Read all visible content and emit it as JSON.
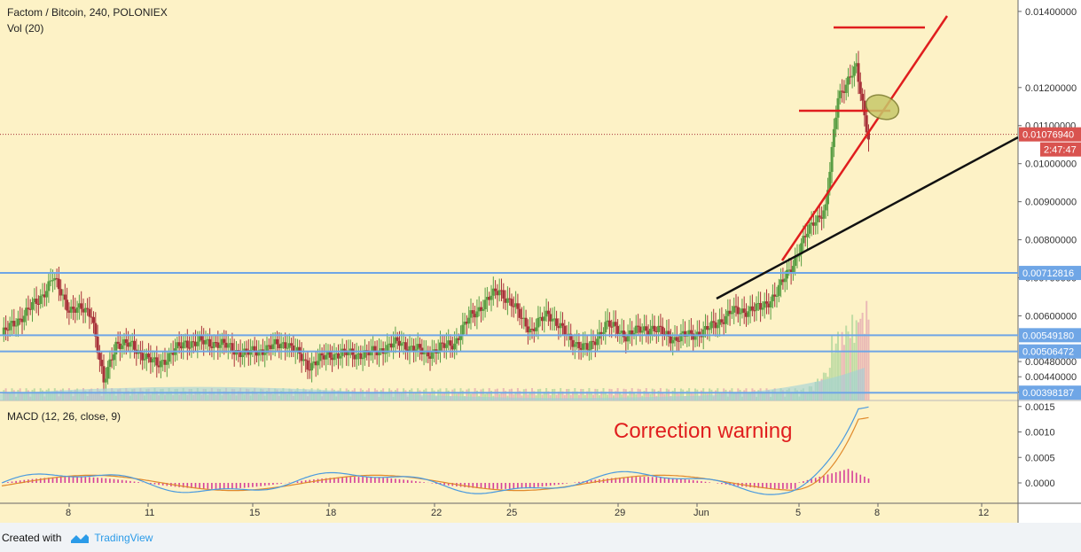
{
  "header": {
    "title": "Factom / Bitcoin, 240, POLONIEX",
    "volume_label": "Vol (20)"
  },
  "macd": {
    "label": "MACD (12, 26, close, 9)",
    "annotation": "Correction warning",
    "ticks": [
      "0.0015",
      "0.0010",
      "0.0005",
      "0.0000"
    ]
  },
  "footer": {
    "created_with": "Created with",
    "brand": "TradingView"
  },
  "price_axis": {
    "ticks": [
      "0.01400000",
      "0.01200000",
      "0.01100000",
      "0.01000000",
      "0.00900000",
      "0.00800000",
      "0.00700000",
      "0.00600000",
      "0.00480000",
      "0.00440000",
      "0.00400000"
    ]
  },
  "price_badge": {
    "value": "0.01076940",
    "countdown": "2:47:47",
    "color": "#d9534f"
  },
  "levels": [
    {
      "label": "0.00712816",
      "value": 0.00712816
    },
    {
      "label": "0.00549180",
      "value": 0.0054918
    },
    {
      "label": "0.00506472",
      "value": 0.00506472
    },
    {
      "label": "0.00398187",
      "value": 0.00398187
    }
  ],
  "time_axis": [
    "8",
    "11",
    "15",
    "18",
    "22",
    "25",
    "29",
    "Jun",
    "5",
    "8",
    "12"
  ],
  "colors": {
    "background": "#fdf2c6",
    "up": "#5a9e44",
    "down": "#a8323a",
    "level_line": "#6fa6e6",
    "trend_red": "#e01e1e",
    "trend_black": "#111111",
    "macd_line": "#4a9adf",
    "signal_line": "#e08a2c",
    "histogram": "#d5409a"
  },
  "chart_data": {
    "type": "candlestick",
    "symbol": "Factom / Bitcoin",
    "interval": "240",
    "exchange": "POLONIEX",
    "last_price": 0.0107694,
    "ylim": [
      0.0038,
      0.0143
    ],
    "anchors": [
      [
        0,
        0.0055
      ],
      [
        8,
        0.0059
      ],
      [
        18,
        0.0064
      ],
      [
        25,
        0.007
      ],
      [
        33,
        0.0062
      ],
      [
        44,
        0.0061
      ],
      [
        50,
        0.0042
      ],
      [
        56,
        0.0053
      ],
      [
        64,
        0.0052
      ],
      [
        76,
        0.0047
      ],
      [
        90,
        0.0053
      ],
      [
        105,
        0.0053
      ],
      [
        120,
        0.005
      ],
      [
        140,
        0.0053
      ],
      [
        150,
        0.0047
      ],
      [
        162,
        0.005
      ],
      [
        180,
        0.005
      ],
      [
        195,
        0.0053
      ],
      [
        208,
        0.005
      ],
      [
        222,
        0.0053
      ],
      [
        230,
        0.006
      ],
      [
        238,
        0.0064
      ],
      [
        244,
        0.0067
      ],
      [
        250,
        0.0063
      ],
      [
        260,
        0.0056
      ],
      [
        268,
        0.0061
      ],
      [
        278,
        0.0054
      ],
      [
        288,
        0.0051
      ],
      [
        296,
        0.0058
      ],
      [
        306,
        0.0055
      ],
      [
        318,
        0.0057
      ],
      [
        330,
        0.0054
      ],
      [
        345,
        0.0056
      ],
      [
        358,
        0.0061
      ],
      [
        372,
        0.0062
      ],
      [
        380,
        0.0066
      ],
      [
        388,
        0.0074
      ],
      [
        398,
        0.0085
      ],
      [
        404,
        0.0088
      ],
      [
        410,
        0.0118
      ],
      [
        414,
        0.0121
      ],
      [
        419,
        0.0125
      ],
      [
        423,
        0.0113
      ],
      [
        425,
        0.0107
      ]
    ],
    "volume_relative": "low and flat until the final rally, where volume spikes",
    "macd": {
      "ylim": [
        -0.0004,
        0.0016
      ],
      "peak": 0.0015,
      "signal_peak": 0.0013
    },
    "drawings": [
      "horizontal support/resistance lines at 0.00712816, 0.00549180, 0.00506472, 0.00398187",
      "red rising trendline",
      "black rising trendline",
      "red horizontal lines near 0.0130 and 0.0098",
      "ellipse near 0.0098"
    ]
  }
}
